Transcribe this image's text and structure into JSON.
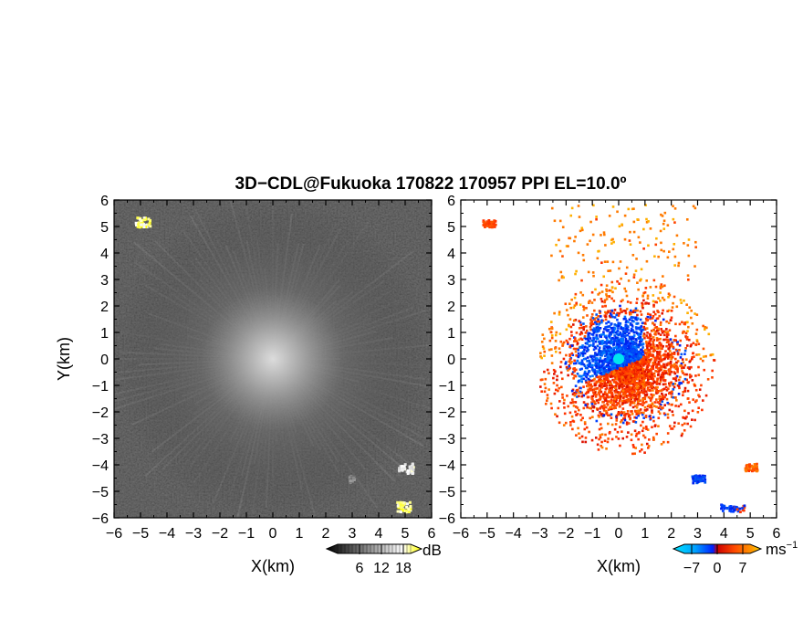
{
  "chart_data": [
    {
      "type": "heatmap",
      "title": "3D−CDL@Fukuoka 170822 170957 PPI EL=10.0º",
      "xlabel": "X(km)",
      "ylabel": "Y(km)",
      "xlim": [
        -6,
        6
      ],
      "ylim": [
        -6,
        6
      ],
      "x_ticks": [
        "−6",
        "−5",
        "−4",
        "−3",
        "−2",
        "−1",
        "0",
        "1",
        "2",
        "3",
        "4",
        "5",
        "6"
      ],
      "y_ticks": [
        "6",
        "5",
        "4",
        "3",
        "2",
        "1",
        "0",
        "−1",
        "−2",
        "−3",
        "−4",
        "−5",
        "−6"
      ],
      "colorbar": {
        "unit": "dB",
        "ticks": [
          "6",
          "12",
          "18"
        ],
        "tick_values": [
          6,
          12,
          18
        ],
        "range": [
          0,
          20
        ]
      },
      "colormap": [
        "#000000",
        "#ffffff",
        "#ffff00"
      ],
      "features": [
        {
          "x": 0,
          "y": 0,
          "value": 13,
          "desc": "bright radial clutter centered on radar"
        },
        {
          "x": -4.95,
          "y": 5.2,
          "value": 20
        },
        {
          "x": 4.9,
          "y": -5.55,
          "value": 20
        },
        {
          "x": 5.0,
          "y": -4.1,
          "value": 18
        },
        {
          "x": 3.0,
          "y": -4.5,
          "value": 11
        }
      ],
      "grid": false
    },
    {
      "type": "heatmap",
      "xlabel": "X(km)",
      "ylabel": "",
      "xlim": [
        -6,
        6
      ],
      "ylim": [
        -6,
        6
      ],
      "x_ticks": [
        "−6",
        "−5",
        "−4",
        "−3",
        "−2",
        "−1",
        "0",
        "1",
        "2",
        "3",
        "4",
        "5",
        "6"
      ],
      "y_ticks": [
        "6",
        "5",
        "4",
        "3",
        "2",
        "1",
        "0",
        "−1",
        "−2",
        "−3",
        "−4",
        "−5",
        "−6"
      ],
      "colorbar": {
        "unit": "ms",
        "unit_exp": "−1",
        "ticks": [
          "−7",
          "0",
          "7"
        ],
        "tick_values": [
          -7,
          0,
          7
        ],
        "range": [
          -9,
          9
        ]
      },
      "colormap": [
        "#00e5ff",
        "#0033ff",
        "#0055ee",
        "#ff3300",
        "#ff6a00",
        "#ffd000"
      ],
      "features": [
        {
          "x": -0.5,
          "y": 0.5,
          "value": -3,
          "desc": "approaching (blue) region"
        },
        {
          "x": 0.5,
          "y": -0.6,
          "value": 3,
          "desc": "receding (red/orange) region"
        },
        {
          "x": -4.95,
          "y": 5.15,
          "value": 3
        },
        {
          "x": 5.0,
          "y": -4.05,
          "value": 4
        },
        {
          "x": 4.3,
          "y": -5.6,
          "value": -2
        },
        {
          "x": 3.0,
          "y": -4.5,
          "value": -3
        }
      ],
      "grid": false
    }
  ]
}
